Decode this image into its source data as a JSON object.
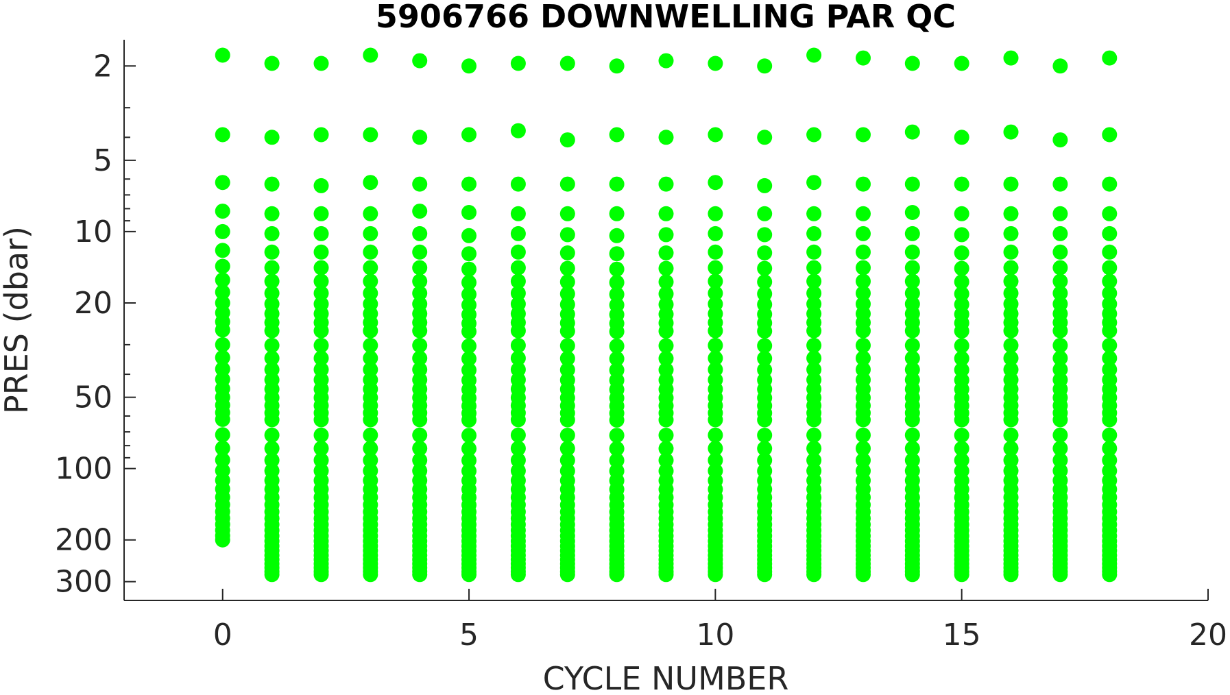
{
  "chart_data": {
    "type": "scatter",
    "title": "5906766  DOWNWELLING PAR QC",
    "xlabel": "CYCLE NUMBER",
    "ylabel": "PRES (dbar)",
    "xlim": [
      -2,
      20
    ],
    "ylim": [
      1.55,
      360
    ],
    "yscale": "log",
    "y_reversed": true,
    "grid": false,
    "x_ticks": [
      0,
      5,
      10,
      15,
      20
    ],
    "y_ticks": [
      2,
      5,
      10,
      20,
      50,
      100,
      200,
      300
    ],
    "marker_color": "#00ff00",
    "x": [
      0,
      1,
      2,
      3,
      4,
      5,
      6,
      7,
      8,
      9,
      10,
      11,
      12,
      13,
      14,
      15,
      16,
      17,
      18
    ],
    "profile_top_points": [
      [
        1.8,
        3.9,
        6.2,
        8.2,
        10.0
      ],
      [
        1.95,
        4.0,
        6.3,
        8.4,
        10.2
      ],
      [
        1.95,
        3.9,
        6.4,
        8.4,
        10.2
      ],
      [
        1.8,
        3.9,
        6.2,
        8.4,
        10.2
      ],
      [
        1.9,
        4.0,
        6.3,
        8.2,
        10.2
      ],
      [
        2.0,
        3.9,
        6.3,
        8.3,
        10.4
      ],
      [
        1.95,
        3.75,
        6.3,
        8.4,
        10.2
      ],
      [
        1.95,
        4.1,
        6.3,
        8.4,
        10.3
      ],
      [
        2.0,
        3.9,
        6.3,
        8.4,
        10.4
      ],
      [
        1.9,
        4.0,
        6.3,
        8.4,
        10.3
      ],
      [
        1.95,
        3.9,
        6.2,
        8.4,
        10.2
      ],
      [
        2.0,
        4.0,
        6.4,
        8.4,
        10.3
      ],
      [
        1.8,
        3.9,
        6.2,
        8.4,
        10.2
      ],
      [
        1.85,
        3.9,
        6.3,
        8.4,
        10.2
      ],
      [
        1.95,
        3.8,
        6.3,
        8.3,
        10.2
      ],
      [
        1.95,
        4.0,
        6.3,
        8.4,
        10.3
      ],
      [
        1.85,
        3.8,
        6.3,
        8.4,
        10.2
      ],
      [
        2.0,
        4.1,
        6.3,
        8.4,
        10.2
      ],
      [
        1.85,
        3.9,
        6.3,
        8.4,
        10.2
      ]
    ],
    "profile_max_pres": [
      200,
      280,
      280,
      280,
      280,
      280,
      280,
      280,
      280,
      280,
      280,
      280,
      280,
      280,
      280,
      280,
      280,
      280,
      280
    ]
  }
}
